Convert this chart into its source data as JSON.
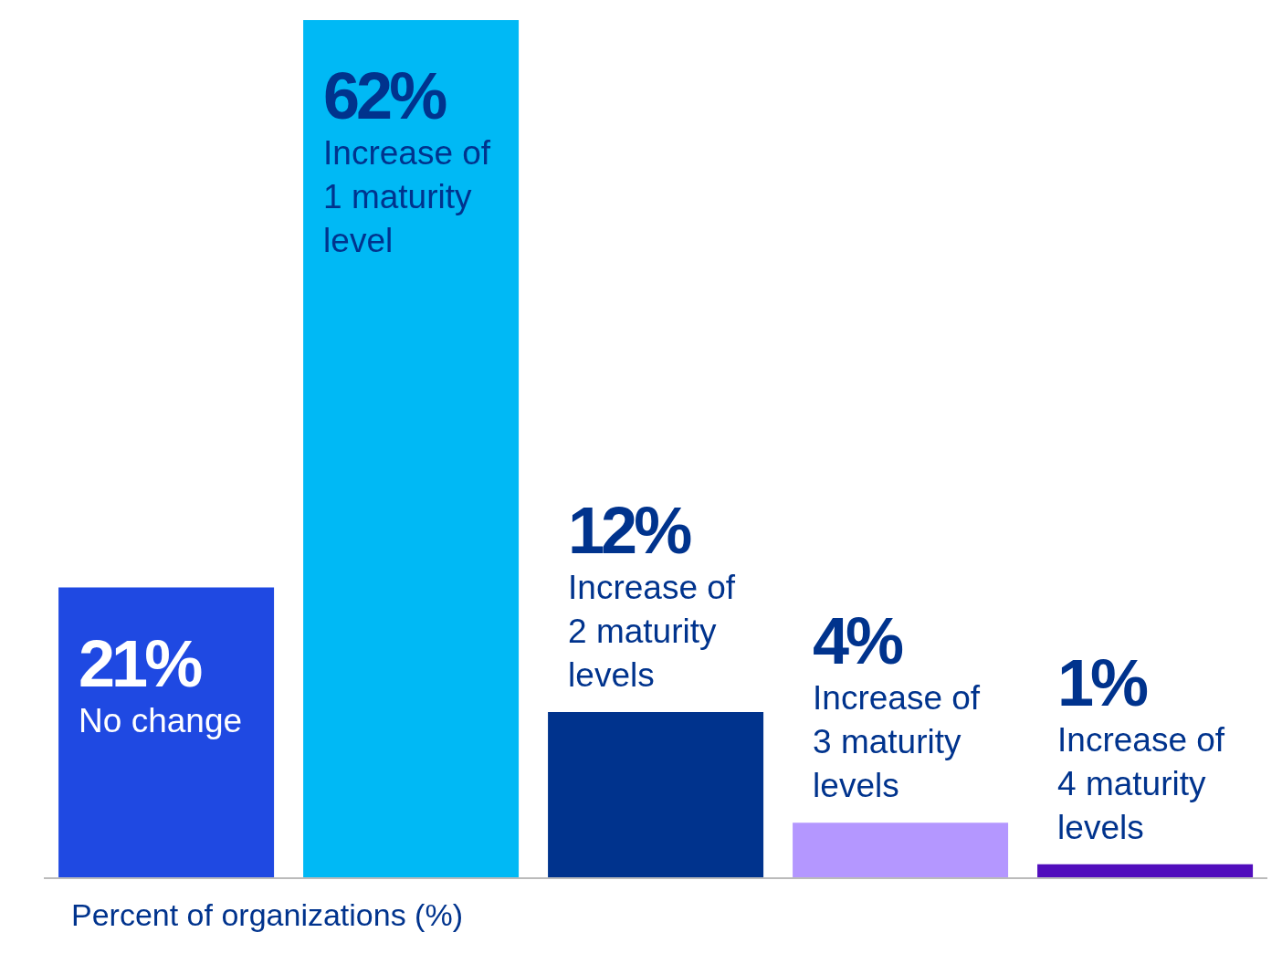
{
  "chart_data": {
    "type": "bar",
    "categories": [
      "No change",
      "Increase of 1 maturity level",
      "Increase of 2 maturity levels",
      "Increase of 3 maturity levels",
      "Increase of 4 maturity levels"
    ],
    "values": [
      21,
      62,
      12,
      4,
      1
    ],
    "value_labels": [
      "21%",
      "62%",
      "12%",
      "4%",
      "1%"
    ],
    "colors": [
      "#1f49e2",
      "#00b9f5",
      "#00338d",
      "#b497ff",
      "#510dbc"
    ],
    "xlabel": "Percent of organizations (%)",
    "grid": false,
    "legend": false
  }
}
